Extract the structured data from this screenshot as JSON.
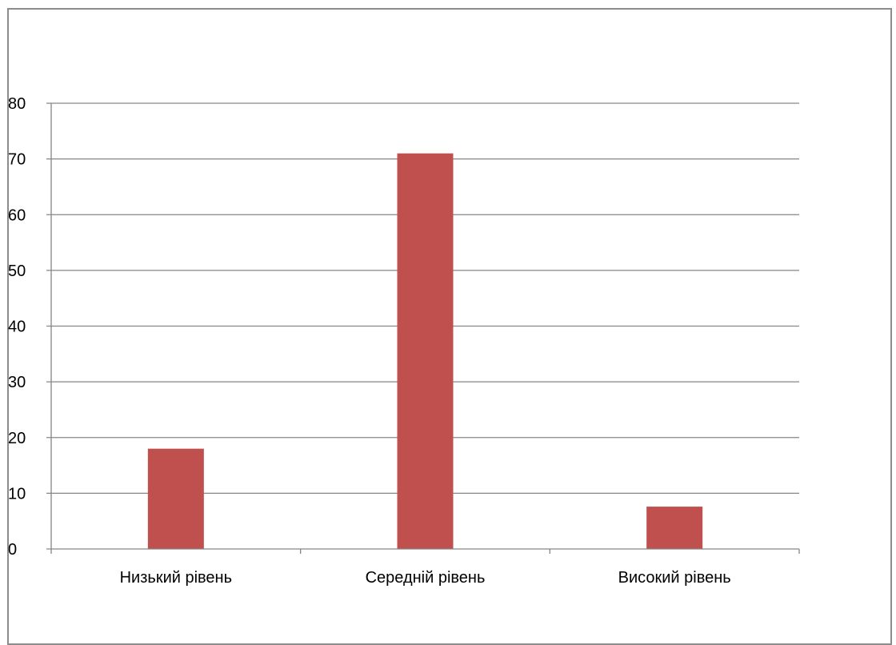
{
  "chart_data": {
    "type": "bar",
    "categories": [
      "Низький рівень",
      "Середній рівень",
      "Високий рівень"
    ],
    "values": [
      18,
      71,
      7.6
    ],
    "title": "",
    "xlabel": "",
    "ylabel": "",
    "ylim": [
      0,
      80
    ],
    "yticks": [
      "0",
      "10",
      "20",
      "30",
      "40",
      "50",
      "60",
      "70",
      "80"
    ],
    "grid": true,
    "legend": "none",
    "bar_color": "#c0504d",
    "grid_color": "#868686",
    "axis_color": "#868686"
  }
}
